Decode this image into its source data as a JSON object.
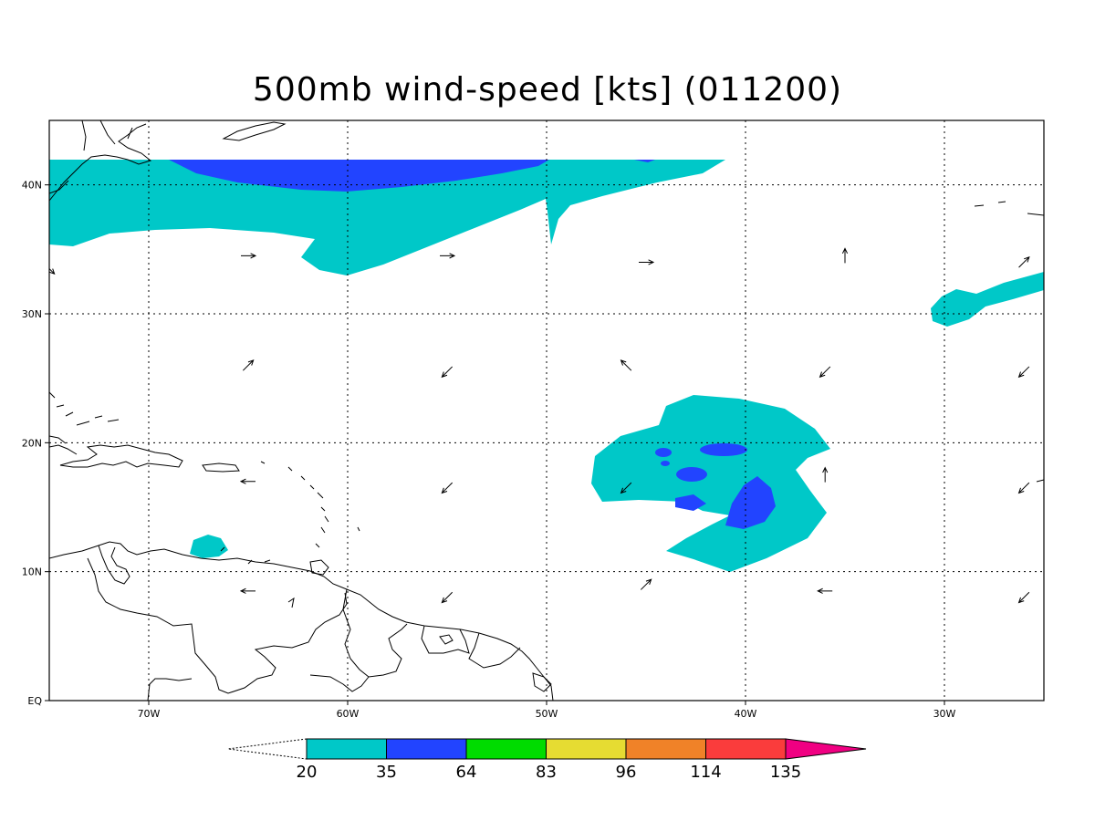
{
  "title": "500mb wind-speed [kts] (011200)",
  "map": {
    "lon_range": [
      -75,
      -25
    ],
    "lat_range": [
      0,
      45
    ],
    "x_ticks": [
      "70W",
      "60W",
      "50W",
      "40W",
      "30W"
    ],
    "x_tick_lons": [
      -70,
      -60,
      -50,
      -40,
      -30
    ],
    "y_ticks": [
      "EQ",
      "10N",
      "20N",
      "30N",
      "40N"
    ],
    "y_tick_lats": [
      0,
      10,
      20,
      30,
      40
    ],
    "grid": "dotted"
  },
  "colorbar": {
    "labels": [
      "20",
      "35",
      "64",
      "83",
      "96",
      "114",
      "135"
    ],
    "colors": [
      "#00c8c8",
      "#2244ff",
      "#00dc00",
      "#e6dc32",
      "#f08228",
      "#fa3c3c",
      "#f00082"
    ]
  },
  "wind_vectors": [
    {
      "lon": -65,
      "lat": 34.5,
      "dir": "E"
    },
    {
      "lon": -55,
      "lat": 34.5,
      "dir": "E"
    },
    {
      "lon": -45,
      "lat": 34.0,
      "dir": "E"
    },
    {
      "lon": -35,
      "lat": 34.5,
      "dir": "N"
    },
    {
      "lon": -26,
      "lat": 34.0,
      "dir": "NE"
    },
    {
      "lon": -75,
      "lat": 33.5,
      "dir": "SE"
    },
    {
      "lon": -65,
      "lat": 26.0,
      "dir": "NE"
    },
    {
      "lon": -55,
      "lat": 25.5,
      "dir": "SW"
    },
    {
      "lon": -46,
      "lat": 26.0,
      "dir": "NW"
    },
    {
      "lon": -36,
      "lat": 25.5,
      "dir": "SW"
    },
    {
      "lon": -26,
      "lat": 25.5,
      "dir": "SW"
    },
    {
      "lon": -65,
      "lat": 17.0,
      "dir": "W"
    },
    {
      "lon": -55,
      "lat": 16.5,
      "dir": "SW"
    },
    {
      "lon": -46,
      "lat": 16.5,
      "dir": "SW"
    },
    {
      "lon": -36,
      "lat": 17.5,
      "dir": "N"
    },
    {
      "lon": -26,
      "lat": 16.5,
      "dir": "SW"
    },
    {
      "lon": -65,
      "lat": 8.5,
      "dir": "W"
    },
    {
      "lon": -55,
      "lat": 8.0,
      "dir": "SW"
    },
    {
      "lon": -45,
      "lat": 9.0,
      "dir": "NE"
    },
    {
      "lon": -36,
      "lat": 8.5,
      "dir": "W"
    },
    {
      "lon": -26,
      "lat": 8.0,
      "dir": "SW"
    }
  ]
}
